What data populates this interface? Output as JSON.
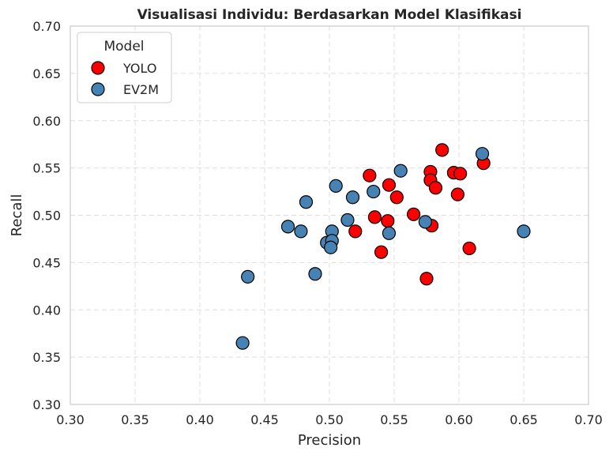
{
  "chart_data": {
    "type": "scatter",
    "title": "Visualisasi Individu: Berdasarkan Model Klasifikasi",
    "xlabel": "Precision",
    "ylabel": "Recall",
    "xlim": [
      0.3,
      0.7
    ],
    "ylim": [
      0.3,
      0.7
    ],
    "x_ticks": [
      "0.30",
      "0.35",
      "0.40",
      "0.45",
      "0.50",
      "0.55",
      "0.60",
      "0.65",
      "0.70"
    ],
    "y_ticks": [
      "0.30",
      "0.35",
      "0.40",
      "0.45",
      "0.50",
      "0.55",
      "0.60",
      "0.65",
      "0.70"
    ],
    "grid": true,
    "legend": {
      "title": "Model",
      "placement": "top-left"
    },
    "series": [
      {
        "name": "YOLO",
        "color": "#ff0000",
        "points": [
          [
            0.587,
            0.569
          ],
          [
            0.619,
            0.555
          ],
          [
            0.578,
            0.546
          ],
          [
            0.596,
            0.545
          ],
          [
            0.601,
            0.544
          ],
          [
            0.531,
            0.542
          ],
          [
            0.578,
            0.537
          ],
          [
            0.546,
            0.532
          ],
          [
            0.582,
            0.529
          ],
          [
            0.599,
            0.522
          ],
          [
            0.552,
            0.519
          ],
          [
            0.565,
            0.501
          ],
          [
            0.535,
            0.498
          ],
          [
            0.545,
            0.494
          ],
          [
            0.579,
            0.489
          ],
          [
            0.52,
            0.483
          ],
          [
            0.608,
            0.465
          ],
          [
            0.54,
            0.461
          ],
          [
            0.575,
            0.433
          ]
        ]
      },
      {
        "name": "EV2M",
        "color": "#4682b4",
        "points": [
          [
            0.618,
            0.565
          ],
          [
            0.555,
            0.547
          ],
          [
            0.505,
            0.531
          ],
          [
            0.534,
            0.525
          ],
          [
            0.518,
            0.519
          ],
          [
            0.482,
            0.514
          ],
          [
            0.514,
            0.495
          ],
          [
            0.574,
            0.493
          ],
          [
            0.468,
            0.488
          ],
          [
            0.478,
            0.483
          ],
          [
            0.502,
            0.483
          ],
          [
            0.65,
            0.483
          ],
          [
            0.546,
            0.481
          ],
          [
            0.498,
            0.471
          ],
          [
            0.502,
            0.473
          ],
          [
            0.501,
            0.466
          ],
          [
            0.489,
            0.438
          ],
          [
            0.437,
            0.435
          ],
          [
            0.433,
            0.365
          ]
        ]
      }
    ]
  }
}
